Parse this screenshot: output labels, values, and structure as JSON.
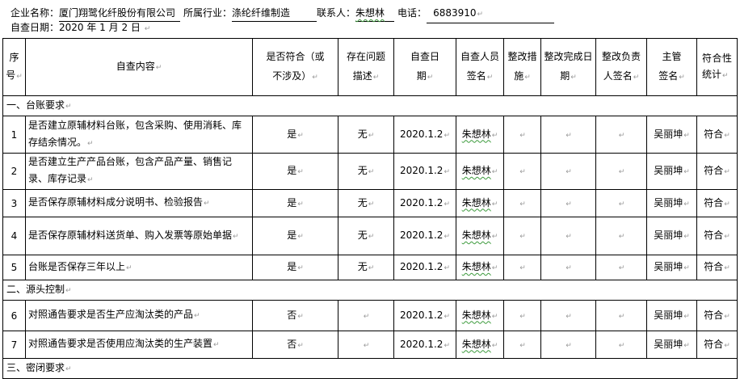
{
  "info": {
    "company_label": "企业名称：",
    "company_value": "厦门翔鹭化纤股份有限公司",
    "industry_label": "所属行业：",
    "industry_value": "涤纶纤维制造",
    "contact_label": "联系人：",
    "contact_value": "朱想林",
    "phone_label": "电话：",
    "phone_value": "6883910",
    "date_label": "自查日期：",
    "date_value": "2020 年 1 月 2 日"
  },
  "table": {
    "headers": [
      "序号",
      "自查内容",
      "是否符合（或不涉及）",
      "存在问题描述",
      "自查日期",
      "自查人员签名",
      "整改措施",
      "整改完成日期",
      "整改负责人签名",
      "主管签名",
      "符合性统计"
    ],
    "sections": [
      {
        "title": "一、台账要求",
        "rows": [
          {
            "no": "1",
            "content": "是否建立原辅材料台账，包含采购、使用消耗、库存结余情况。",
            "comply": "是",
            "issue": "无",
            "date": "2020.1.2",
            "inspector": "朱想林",
            "measure": "",
            "done_date": "",
            "owner": "",
            "supervisor": "吴丽坤",
            "stat": "符合"
          },
          {
            "no": "2",
            "content": "是否建立生产产品台账，包含产品产量、销售记录、库存记录",
            "comply": "是",
            "issue": "无",
            "date": "2020.1.2",
            "inspector": "朱想林",
            "measure": "",
            "done_date": "",
            "owner": "",
            "supervisor": "吴丽坤",
            "stat": "符合"
          },
          {
            "no": "3",
            "content": "是否保存原辅材料成分说明书、检验报告",
            "comply": "是",
            "issue": "无",
            "date": "2020.1.2",
            "inspector": "朱想林",
            "measure": "",
            "done_date": "",
            "owner": "",
            "supervisor": "吴丽坤",
            "stat": "符合"
          },
          {
            "no": "4",
            "content": "是否保存原辅材料送货单、购入发票等原始单据",
            "comply": "是",
            "issue": "无",
            "date": "2020.1.2",
            "inspector": "朱想林",
            "measure": "",
            "done_date": "",
            "owner": "",
            "supervisor": "吴丽坤",
            "stat": "符合"
          },
          {
            "no": "5",
            "content": "台账是否保存三年以上",
            "comply": "是",
            "issue": "无",
            "date": "2020.1.2",
            "inspector": "朱想林",
            "measure": "",
            "done_date": "",
            "owner": "",
            "supervisor": "吴丽坤",
            "stat": "符合"
          }
        ]
      },
      {
        "title": "二、源头控制",
        "rows": [
          {
            "no": "6",
            "content": "对照通告要求是否生产应淘汰类的产品",
            "comply": "否",
            "issue": "",
            "date": "2020.1.2",
            "inspector": "朱想林",
            "measure": "",
            "done_date": "",
            "owner": "",
            "supervisor": "吴丽坤",
            "stat": "符合"
          },
          {
            "no": "7",
            "content": "对照通告要求是否使用应淘汰类的生产装置",
            "comply": "否",
            "issue": "",
            "date": "2020.1.2",
            "inspector": "朱想林",
            "measure": "",
            "done_date": "",
            "owner": "",
            "supervisor": "吴丽坤",
            "stat": "符合"
          }
        ]
      },
      {
        "title": "三、密闭要求",
        "rows": []
      }
    ]
  }
}
